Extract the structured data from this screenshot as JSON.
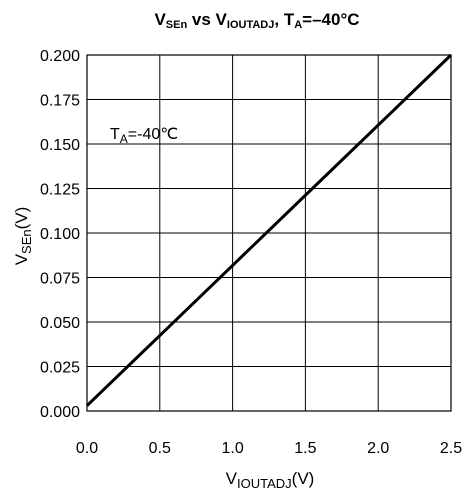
{
  "chart_data": {
    "type": "line",
    "title": {
      "parts": [
        {
          "text": "V",
          "sub": false
        },
        {
          "text": "SEn",
          "sub": true
        },
        {
          "text": " vs V",
          "sub": false
        },
        {
          "text": "IOUTADJ",
          "sub": true
        },
        {
          "text": ", T",
          "sub": false
        },
        {
          "text": "A",
          "sub": true
        },
        {
          "text": "=–40°C",
          "sub": false
        }
      ]
    },
    "xlabel": {
      "parts": [
        {
          "text": "V",
          "sub": false
        },
        {
          "text": "IOUTADJ",
          "sub": true
        },
        {
          "text": "(V)",
          "sub": false
        }
      ]
    },
    "ylabel": {
      "parts": [
        {
          "text": "V",
          "sub": false
        },
        {
          "text": "SEn",
          "sub": true
        },
        {
          "text": "(V)",
          "sub": false
        }
      ]
    },
    "annotation": {
      "parts": [
        {
          "text": "T",
          "sub": false
        },
        {
          "text": "A",
          "sub": true
        },
        {
          "text": "=-40℃",
          "sub": false
        }
      ]
    },
    "xlim": [
      0.0,
      2.5
    ],
    "ylim": [
      0.0,
      0.2
    ],
    "xticks": [
      0.0,
      0.5,
      1.0,
      1.5,
      2.0,
      2.5
    ],
    "xtick_labels": [
      "0.0",
      "0.5",
      "1.0",
      "1.5",
      "2.0",
      "2.5"
    ],
    "yticks": [
      0.0,
      0.025,
      0.05,
      0.075,
      0.1,
      0.125,
      0.15,
      0.175,
      0.2
    ],
    "ytick_labels": [
      "0.000",
      "0.025",
      "0.050",
      "0.075",
      "0.100",
      "0.125",
      "0.150",
      "0.175",
      "0.200"
    ],
    "grid": true,
    "series": [
      {
        "x": [
          0.0,
          0.5,
          1.0,
          1.5,
          2.0,
          2.5
        ],
        "y": [
          0.003,
          0.0424,
          0.0818,
          0.1212,
          0.1606,
          0.2
        ],
        "color": "#000000"
      }
    ]
  }
}
